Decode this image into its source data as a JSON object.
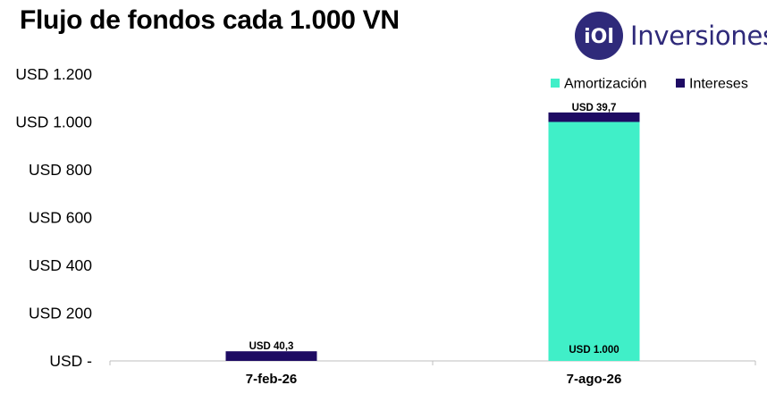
{
  "title": "Flujo de fondos cada 1.000 VN",
  "logo": {
    "mark_text": "iOl",
    "text": "Inversiones",
    "brand_color": "#2f2a7a"
  },
  "chart_data": {
    "type": "bar",
    "stacked": true,
    "categories": [
      "7-feb-26",
      "7-ago-26"
    ],
    "series": [
      {
        "name": "Amortización",
        "color": "#40efc8",
        "values": [
          0,
          1000
        ],
        "labels": [
          "",
          "USD 1.000"
        ]
      },
      {
        "name": "Intereses",
        "color": "#1e0b63",
        "values": [
          40.3,
          39.7
        ],
        "labels": [
          "USD 40,3",
          "USD 39,7"
        ]
      }
    ],
    "ylim": [
      0,
      1200
    ],
    "y_ticks": [
      0,
      200,
      400,
      600,
      800,
      1000,
      1200
    ],
    "y_tick_labels": [
      "USD -",
      "USD 200",
      "USD 400",
      "USD 600",
      "USD 800",
      "USD 1.000",
      "USD 1.200"
    ],
    "title": "Flujo de fondos cada 1.000 VN",
    "xlabel": "",
    "ylabel": "",
    "grid": false,
    "legend_position": "top-right"
  }
}
